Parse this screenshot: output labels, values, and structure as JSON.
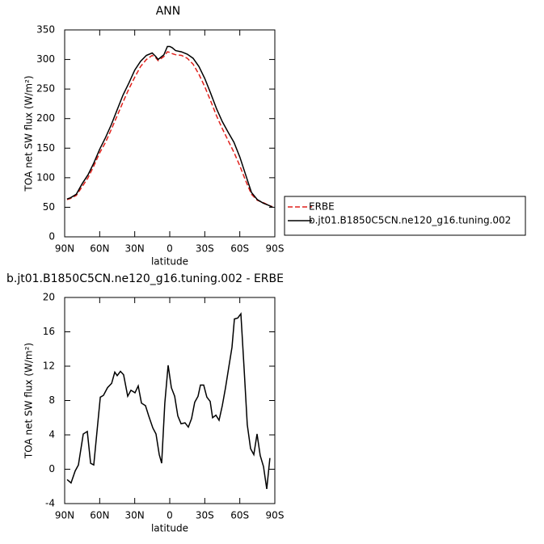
{
  "chart_data": [
    {
      "type": "line",
      "title": "ANN",
      "xlabel": "latitude",
      "ylabel": "TOA net SW flux (W/m²)",
      "x": [
        88,
        85,
        80,
        75,
        70,
        65,
        60,
        55,
        50,
        45,
        40,
        35,
        30,
        25,
        20,
        15,
        12,
        10,
        5,
        2,
        0,
        -2,
        -5,
        -10,
        -15,
        -20,
        -25,
        -30,
        -35,
        -40,
        -45,
        -50,
        -55,
        -60,
        -65,
        -70,
        -75,
        -80,
        -85,
        -88
      ],
      "series": [
        {
          "name": "ERBE",
          "color": "#e0201b",
          "line_style": "dashed",
          "values": [
            63,
            65,
            70,
            85,
            100,
            120,
            142,
            160,
            182,
            205,
            228,
            250,
            270,
            288,
            300,
            307,
            303,
            298,
            305,
            313,
            312,
            310,
            308,
            307,
            302,
            292,
            275,
            254,
            230,
            205,
            183,
            163,
            143,
            120,
            95,
            72,
            62,
            58,
            53,
            51
          ]
        },
        {
          "name": "b.jt01.B1850C5CN.ne120_g16.tuning.002",
          "color": "#000000",
          "line_style": "solid",
          "values": [
            64,
            66,
            72,
            90,
            105,
            125,
            148,
            168,
            190,
            215,
            240,
            260,
            282,
            297,
            307,
            311,
            305,
            300,
            308,
            322,
            322,
            320,
            315,
            313,
            309,
            302,
            288,
            268,
            243,
            217,
            195,
            177,
            160,
            135,
            105,
            75,
            63,
            57,
            53,
            50
          ]
        }
      ],
      "xlim": [
        90,
        -90
      ],
      "xticks": [
        {
          "value": 90,
          "label": "90N"
        },
        {
          "value": 60,
          "label": "60N"
        },
        {
          "value": 30,
          "label": "30N"
        },
        0,
        {
          "value": -30,
          "label": "30S"
        },
        {
          "value": -60,
          "label": "60S"
        },
        {
          "value": -90,
          "label": "90S"
        }
      ],
      "ylim": [
        0,
        350
      ],
      "yticks": [
        0,
        50,
        100,
        150,
        200,
        250,
        300,
        350
      ],
      "legend_position": "outside-right"
    },
    {
      "type": "line",
      "title": "b.jt01.B1850C5CN.ne120_g16.tuning.002 - ERBE",
      "xlabel": "latitude",
      "ylabel": "TOA net SW flux (W/m²)",
      "x": [
        87.9,
        84.5,
        81.0,
        78.2,
        74.1,
        70.6,
        67.8,
        65.1,
        59.5,
        56.8,
        53.3,
        49.8,
        47.1,
        45.0,
        42.2,
        39.5,
        36.0,
        33.2,
        29.8,
        27.0,
        24.2,
        20.8,
        18.0,
        14.5,
        11.8,
        9.0,
        6.9,
        4.2,
        1.4,
        -1.4,
        -4.2,
        -6.9,
        -9.7,
        -13.1,
        -15.9,
        -18.7,
        -21.4,
        -24.2,
        -26.3,
        -29.1,
        -31.8,
        -34.6,
        -36.7,
        -39.5,
        -42.2,
        -45.0,
        -47.8,
        -50.5,
        -53.3,
        -55.4,
        -58.2,
        -60.9,
        -63.7,
        -66.4,
        -69.2,
        -72.0,
        -74.8,
        -77.5,
        -80.3,
        -83.1,
        -85.8
      ],
      "color": "#000000",
      "values": [
        -1.2,
        -1.6,
        -0.2,
        0.5,
        4.1,
        4.4,
        0.7,
        0.5,
        8.4,
        8.6,
        9.5,
        10.0,
        11.3,
        10.9,
        11.4,
        11.0,
        8.5,
        9.2,
        8.9,
        9.7,
        7.7,
        7.4,
        6.2,
        4.8,
        4.1,
        1.7,
        0.7,
        7.7,
        12.1,
        9.5,
        8.5,
        6.2,
        5.3,
        5.4,
        4.9,
        5.9,
        7.8,
        8.5,
        9.8,
        9.8,
        8.4,
        7.9,
        6.0,
        6.3,
        5.7,
        7.4,
        9.5,
        11.8,
        14.2,
        17.5,
        17.6,
        18.1,
        11.7,
        5.2,
        2.4,
        1.7,
        4.1,
        1.6,
        0.3,
        -2.3,
        1.3
      ],
      "xlim": [
        90,
        -90
      ],
      "xticks": [
        {
          "value": 90,
          "label": "90N"
        },
        {
          "value": 60,
          "label": "60N"
        },
        {
          "value": 30,
          "label": "30N"
        },
        0,
        {
          "value": -30,
          "label": "30S"
        },
        {
          "value": -60,
          "label": "60S"
        },
        {
          "value": -90,
          "label": "90S"
        }
      ],
      "ylim": [
        -4,
        20
      ],
      "yticks": [
        -4,
        0,
        4,
        8,
        12,
        16,
        20
      ]
    }
  ]
}
